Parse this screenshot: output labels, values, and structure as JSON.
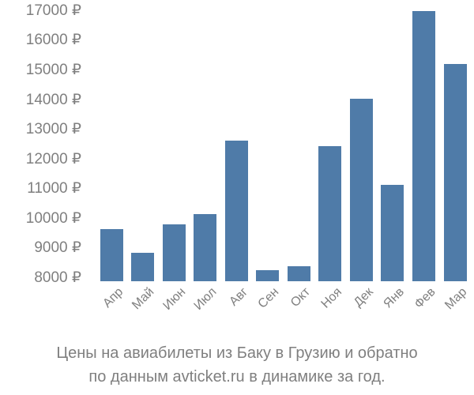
{
  "chart_data": {
    "type": "bar",
    "title": "",
    "xlabel": "",
    "ylabel": "",
    "categories": [
      "Апр",
      "Май",
      "Июн",
      "Июл",
      "Авг",
      "Сен",
      "Окт",
      "Ноя",
      "Дек",
      "Янв",
      "Фев",
      "Мар"
    ],
    "values": [
      9650,
      8850,
      9800,
      10150,
      12620,
      8270,
      8400,
      12440,
      14040,
      11150,
      17000,
      15210
    ],
    "y_ticks": [
      8000,
      9000,
      10000,
      11000,
      12000,
      13000,
      14000,
      15000,
      16000,
      17000
    ],
    "y_tick_labels": [
      "8000 ₽",
      "9000 ₽",
      "10000 ₽",
      "11000 ₽",
      "12000 ₽",
      "13000 ₽",
      "14000 ₽",
      "15000 ₽",
      "16000 ₽",
      "17000 ₽"
    ],
    "currency_symbol": "₽",
    "ylim": [
      7890,
      17000
    ],
    "grid": false,
    "legend": "none",
    "bar_color": "#4f7ba8",
    "text_color": "#7f7f7f"
  },
  "caption": {
    "line1": "Цены на авиабилеты из Баку в Грузию и обратно",
    "line2": "по данным avticket.ru в динамике за год."
  }
}
